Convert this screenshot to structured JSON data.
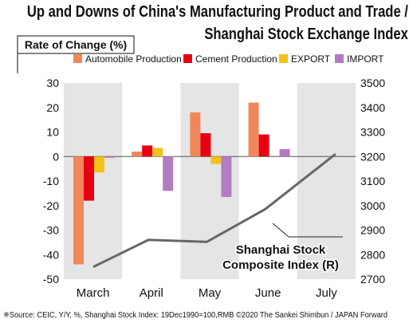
{
  "title_line1": "Up and Downs of China's Manufacturing Product and Trade /",
  "title_line2": "Shanghai Stock Exchange Index",
  "footer": "※Source: CEIC, Y/Y, %, Shanghai Stock Index: 19Dec1990=100,RMB  ©2020 The Sankei Shimbun / JAPAN Forward",
  "chart_data": {
    "type": "bar",
    "categories": [
      "March",
      "April",
      "May",
      "June",
      "July"
    ],
    "ylabel": "Rate of Change (%)",
    "ylim": [
      -50,
      30
    ],
    "yticks": [
      30,
      20,
      10,
      0,
      -10,
      -20,
      -30,
      -40,
      -50
    ],
    "y2lim": [
      2700,
      3500
    ],
    "y2ticks": [
      3500,
      3400,
      3300,
      3200,
      3100,
      3000,
      2900,
      2800,
      2700
    ],
    "series": [
      {
        "name": "Automobile Production",
        "color": "#f0875a",
        "values": [
          -44,
          2,
          18,
          22,
          null
        ]
      },
      {
        "name": "Cement Production",
        "color": "#e60012",
        "values": [
          -18,
          4.5,
          9.5,
          9,
          null
        ]
      },
      {
        "name": "EXPORT",
        "color": "#f1c21b",
        "values": [
          -6.5,
          3.5,
          -3,
          null,
          null
        ]
      },
      {
        "name": "IMPORT",
        "color": "#b47cc0",
        "values": [
          -0.5,
          -14,
          -16.5,
          3,
          null
        ]
      }
    ],
    "line_series": {
      "name": "Shanghai Stock\nComposite Index (R)",
      "color": "#666666",
      "values": [
        2750,
        2860,
        2852,
        2985,
        3210
      ]
    },
    "shaded_months": [
      "March",
      "May",
      "July"
    ],
    "grid": false
  }
}
